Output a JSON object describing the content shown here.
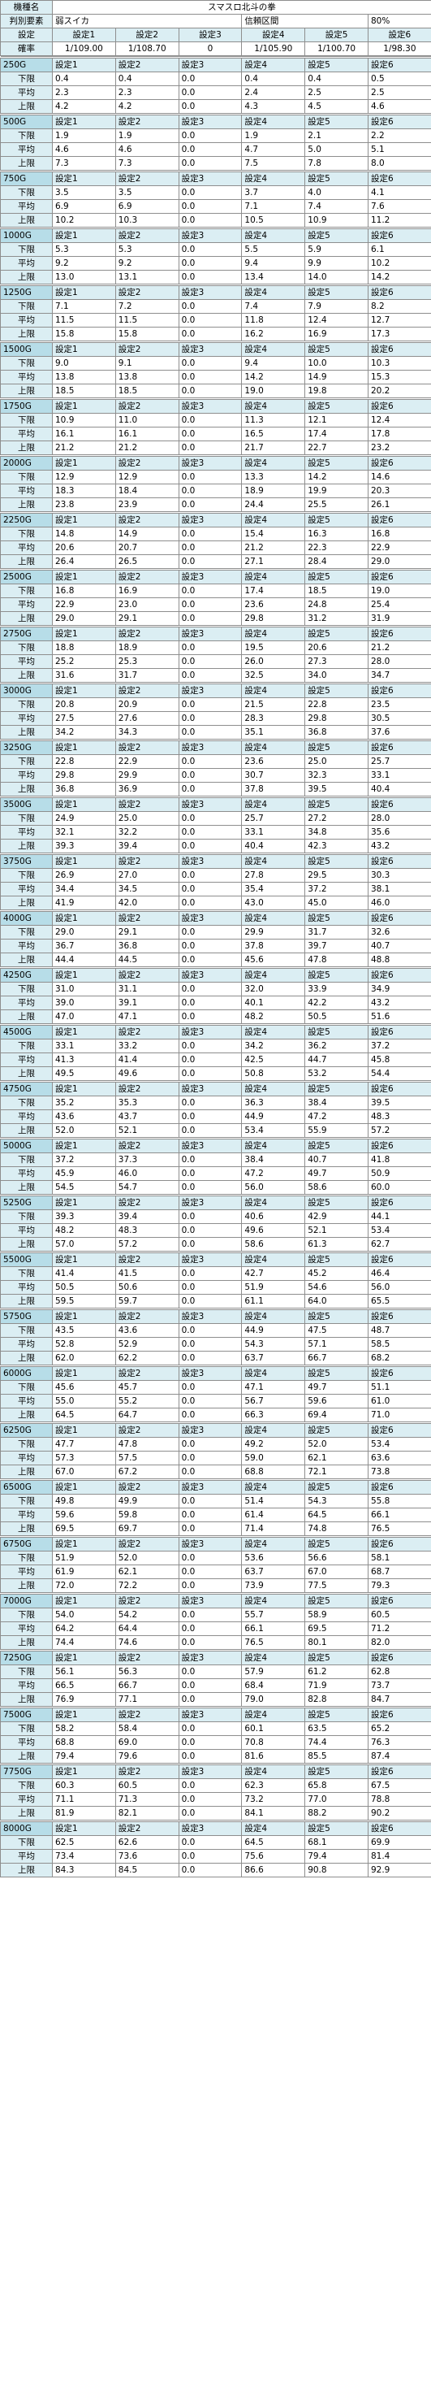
{
  "header": {
    "machine_label": "機種名",
    "machine_name": "スマスロ北斗の拳",
    "element_label": "判別要素",
    "element_value": "弱スイカ",
    "confidence_label": "信頼区間",
    "confidence_value": "80%",
    "setting_label": "設定",
    "prob_label": "確率",
    "settings": [
      "設定1",
      "設定2",
      "設定3",
      "設定4",
      "設定5",
      "設定6"
    ],
    "probs": [
      "1/109.00",
      "1/108.70",
      "0",
      "1/105.90",
      "1/100.70",
      "1/98.30"
    ]
  },
  "row_labels": [
    "下限",
    "平均",
    "上限"
  ],
  "blocks": [
    {
      "g": "250G",
      "rows": [
        [
          "0.4",
          "0.4",
          "0.0",
          "0.4",
          "0.4",
          "0.5"
        ],
        [
          "2.3",
          "2.3",
          "0.0",
          "2.4",
          "2.5",
          "2.5"
        ],
        [
          "4.2",
          "4.2",
          "0.0",
          "4.3",
          "4.5",
          "4.6"
        ]
      ]
    },
    {
      "g": "500G",
      "rows": [
        [
          "1.9",
          "1.9",
          "0.0",
          "1.9",
          "2.1",
          "2.2"
        ],
        [
          "4.6",
          "4.6",
          "0.0",
          "4.7",
          "5.0",
          "5.1"
        ],
        [
          "7.3",
          "7.3",
          "0.0",
          "7.5",
          "7.8",
          "8.0"
        ]
      ]
    },
    {
      "g": "750G",
      "rows": [
        [
          "3.5",
          "3.5",
          "0.0",
          "3.7",
          "4.0",
          "4.1"
        ],
        [
          "6.9",
          "6.9",
          "0.0",
          "7.1",
          "7.4",
          "7.6"
        ],
        [
          "10.2",
          "10.3",
          "0.0",
          "10.5",
          "10.9",
          "11.2"
        ]
      ]
    },
    {
      "g": "1000G",
      "rows": [
        [
          "5.3",
          "5.3",
          "0.0",
          "5.5",
          "5.9",
          "6.1"
        ],
        [
          "9.2",
          "9.2",
          "0.0",
          "9.4",
          "9.9",
          "10.2"
        ],
        [
          "13.0",
          "13.1",
          "0.0",
          "13.4",
          "14.0",
          "14.2"
        ]
      ]
    },
    {
      "g": "1250G",
      "rows": [
        [
          "7.1",
          "7.2",
          "0.0",
          "7.4",
          "7.9",
          "8.2"
        ],
        [
          "11.5",
          "11.5",
          "0.0",
          "11.8",
          "12.4",
          "12.7"
        ],
        [
          "15.8",
          "15.8",
          "0.0",
          "16.2",
          "16.9",
          "17.3"
        ]
      ]
    },
    {
      "g": "1500G",
      "rows": [
        [
          "9.0",
          "9.1",
          "0.0",
          "9.4",
          "10.0",
          "10.3"
        ],
        [
          "13.8",
          "13.8",
          "0.0",
          "14.2",
          "14.9",
          "15.3"
        ],
        [
          "18.5",
          "18.5",
          "0.0",
          "19.0",
          "19.8",
          "20.2"
        ]
      ]
    },
    {
      "g": "1750G",
      "rows": [
        [
          "10.9",
          "11.0",
          "0.0",
          "11.3",
          "12.1",
          "12.4"
        ],
        [
          "16.1",
          "16.1",
          "0.0",
          "16.5",
          "17.4",
          "17.8"
        ],
        [
          "21.2",
          "21.2",
          "0.0",
          "21.7",
          "22.7",
          "23.2"
        ]
      ]
    },
    {
      "g": "2000G",
      "rows": [
        [
          "12.9",
          "12.9",
          "0.0",
          "13.3",
          "14.2",
          "14.6"
        ],
        [
          "18.3",
          "18.4",
          "0.0",
          "18.9",
          "19.9",
          "20.3"
        ],
        [
          "23.8",
          "23.9",
          "0.0",
          "24.4",
          "25.5",
          "26.1"
        ]
      ]
    },
    {
      "g": "2250G",
      "rows": [
        [
          "14.8",
          "14.9",
          "0.0",
          "15.4",
          "16.3",
          "16.8"
        ],
        [
          "20.6",
          "20.7",
          "0.0",
          "21.2",
          "22.3",
          "22.9"
        ],
        [
          "26.4",
          "26.5",
          "0.0",
          "27.1",
          "28.4",
          "29.0"
        ]
      ]
    },
    {
      "g": "2500G",
      "rows": [
        [
          "16.8",
          "16.9",
          "0.0",
          "17.4",
          "18.5",
          "19.0"
        ],
        [
          "22.9",
          "23.0",
          "0.0",
          "23.6",
          "24.8",
          "25.4"
        ],
        [
          "29.0",
          "29.1",
          "0.0",
          "29.8",
          "31.2",
          "31.9"
        ]
      ]
    },
    {
      "g": "2750G",
      "rows": [
        [
          "18.8",
          "18.9",
          "0.0",
          "19.5",
          "20.6",
          "21.2"
        ],
        [
          "25.2",
          "25.3",
          "0.0",
          "26.0",
          "27.3",
          "28.0"
        ],
        [
          "31.6",
          "31.7",
          "0.0",
          "32.5",
          "34.0",
          "34.7"
        ]
      ]
    },
    {
      "g": "3000G",
      "rows": [
        [
          "20.8",
          "20.9",
          "0.0",
          "21.5",
          "22.8",
          "23.5"
        ],
        [
          "27.5",
          "27.6",
          "0.0",
          "28.3",
          "29.8",
          "30.5"
        ],
        [
          "34.2",
          "34.3",
          "0.0",
          "35.1",
          "36.8",
          "37.6"
        ]
      ]
    },
    {
      "g": "3250G",
      "rows": [
        [
          "22.8",
          "22.9",
          "0.0",
          "23.6",
          "25.0",
          "25.7"
        ],
        [
          "29.8",
          "29.9",
          "0.0",
          "30.7",
          "32.3",
          "33.1"
        ],
        [
          "36.8",
          "36.9",
          "0.0",
          "37.8",
          "39.5",
          "40.4"
        ]
      ]
    },
    {
      "g": "3500G",
      "rows": [
        [
          "24.9",
          "25.0",
          "0.0",
          "25.7",
          "27.2",
          "28.0"
        ],
        [
          "32.1",
          "32.2",
          "0.0",
          "33.1",
          "34.8",
          "35.6"
        ],
        [
          "39.3",
          "39.4",
          "0.0",
          "40.4",
          "42.3",
          "43.2"
        ]
      ]
    },
    {
      "g": "3750G",
      "rows": [
        [
          "26.9",
          "27.0",
          "0.0",
          "27.8",
          "29.5",
          "30.3"
        ],
        [
          "34.4",
          "34.5",
          "0.0",
          "35.4",
          "37.2",
          "38.1"
        ],
        [
          "41.9",
          "42.0",
          "0.0",
          "43.0",
          "45.0",
          "46.0"
        ]
      ]
    },
    {
      "g": "4000G",
      "rows": [
        [
          "29.0",
          "29.1",
          "0.0",
          "29.9",
          "31.7",
          "32.6"
        ],
        [
          "36.7",
          "36.8",
          "0.0",
          "37.8",
          "39.7",
          "40.7"
        ],
        [
          "44.4",
          "44.5",
          "0.0",
          "45.6",
          "47.8",
          "48.8"
        ]
      ]
    },
    {
      "g": "4250G",
      "rows": [
        [
          "31.0",
          "31.1",
          "0.0",
          "32.0",
          "33.9",
          "34.9"
        ],
        [
          "39.0",
          "39.1",
          "0.0",
          "40.1",
          "42.2",
          "43.2"
        ],
        [
          "47.0",
          "47.1",
          "0.0",
          "48.2",
          "50.5",
          "51.6"
        ]
      ]
    },
    {
      "g": "4500G",
      "rows": [
        [
          "33.1",
          "33.2",
          "0.0",
          "34.2",
          "36.2",
          "37.2"
        ],
        [
          "41.3",
          "41.4",
          "0.0",
          "42.5",
          "44.7",
          "45.8"
        ],
        [
          "49.5",
          "49.6",
          "0.0",
          "50.8",
          "53.2",
          "54.4"
        ]
      ]
    },
    {
      "g": "4750G",
      "rows": [
        [
          "35.2",
          "35.3",
          "0.0",
          "36.3",
          "38.4",
          "39.5"
        ],
        [
          "43.6",
          "43.7",
          "0.0",
          "44.9",
          "47.2",
          "48.3"
        ],
        [
          "52.0",
          "52.1",
          "0.0",
          "53.4",
          "55.9",
          "57.2"
        ]
      ]
    },
    {
      "g": "5000G",
      "rows": [
        [
          "37.2",
          "37.3",
          "0.0",
          "38.4",
          "40.7",
          "41.8"
        ],
        [
          "45.9",
          "46.0",
          "0.0",
          "47.2",
          "49.7",
          "50.9"
        ],
        [
          "54.5",
          "54.7",
          "0.0",
          "56.0",
          "58.6",
          "60.0"
        ]
      ]
    },
    {
      "g": "5250G",
      "rows": [
        [
          "39.3",
          "39.4",
          "0.0",
          "40.6",
          "42.9",
          "44.1"
        ],
        [
          "48.2",
          "48.3",
          "0.0",
          "49.6",
          "52.1",
          "53.4"
        ],
        [
          "57.0",
          "57.2",
          "0.0",
          "58.6",
          "61.3",
          "62.7"
        ]
      ]
    },
    {
      "g": "5500G",
      "rows": [
        [
          "41.4",
          "41.5",
          "0.0",
          "42.7",
          "45.2",
          "46.4"
        ],
        [
          "50.5",
          "50.6",
          "0.0",
          "51.9",
          "54.6",
          "56.0"
        ],
        [
          "59.5",
          "59.7",
          "0.0",
          "61.1",
          "64.0",
          "65.5"
        ]
      ]
    },
    {
      "g": "5750G",
      "rows": [
        [
          "43.5",
          "43.6",
          "0.0",
          "44.9",
          "47.5",
          "48.7"
        ],
        [
          "52.8",
          "52.9",
          "0.0",
          "54.3",
          "57.1",
          "58.5"
        ],
        [
          "62.0",
          "62.2",
          "0.0",
          "63.7",
          "66.7",
          "68.2"
        ]
      ]
    },
    {
      "g": "6000G",
      "rows": [
        [
          "45.6",
          "45.7",
          "0.0",
          "47.1",
          "49.7",
          "51.1"
        ],
        [
          "55.0",
          "55.2",
          "0.0",
          "56.7",
          "59.6",
          "61.0"
        ],
        [
          "64.5",
          "64.7",
          "0.0",
          "66.3",
          "69.4",
          "71.0"
        ]
      ]
    },
    {
      "g": "6250G",
      "rows": [
        [
          "47.7",
          "47.8",
          "0.0",
          "49.2",
          "52.0",
          "53.4"
        ],
        [
          "57.3",
          "57.5",
          "0.0",
          "59.0",
          "62.1",
          "63.6"
        ],
        [
          "67.0",
          "67.2",
          "0.0",
          "68.8",
          "72.1",
          "73.8"
        ]
      ]
    },
    {
      "g": "6500G",
      "rows": [
        [
          "49.8",
          "49.9",
          "0.0",
          "51.4",
          "54.3",
          "55.8"
        ],
        [
          "59.6",
          "59.8",
          "0.0",
          "61.4",
          "64.5",
          "66.1"
        ],
        [
          "69.5",
          "69.7",
          "0.0",
          "71.4",
          "74.8",
          "76.5"
        ]
      ]
    },
    {
      "g": "6750G",
      "rows": [
        [
          "51.9",
          "52.0",
          "0.0",
          "53.6",
          "56.6",
          "58.1"
        ],
        [
          "61.9",
          "62.1",
          "0.0",
          "63.7",
          "67.0",
          "68.7"
        ],
        [
          "72.0",
          "72.2",
          "0.0",
          "73.9",
          "77.5",
          "79.3"
        ]
      ]
    },
    {
      "g": "7000G",
      "rows": [
        [
          "54.0",
          "54.2",
          "0.0",
          "55.7",
          "58.9",
          "60.5"
        ],
        [
          "64.2",
          "64.4",
          "0.0",
          "66.1",
          "69.5",
          "71.2"
        ],
        [
          "74.4",
          "74.6",
          "0.0",
          "76.5",
          "80.1",
          "82.0"
        ]
      ]
    },
    {
      "g": "7250G",
      "rows": [
        [
          "56.1",
          "56.3",
          "0.0",
          "57.9",
          "61.2",
          "62.8"
        ],
        [
          "66.5",
          "66.7",
          "0.0",
          "68.4",
          "71.9",
          "73.7"
        ],
        [
          "76.9",
          "77.1",
          "0.0",
          "79.0",
          "82.8",
          "84.7"
        ]
      ]
    },
    {
      "g": "7500G",
      "rows": [
        [
          "58.2",
          "58.4",
          "0.0",
          "60.1",
          "63.5",
          "65.2"
        ],
        [
          "68.8",
          "69.0",
          "0.0",
          "70.8",
          "74.4",
          "76.3"
        ],
        [
          "79.4",
          "79.6",
          "0.0",
          "81.6",
          "85.5",
          "87.4"
        ]
      ]
    },
    {
      "g": "7750G",
      "rows": [
        [
          "60.3",
          "60.5",
          "0.0",
          "62.3",
          "65.8",
          "67.5"
        ],
        [
          "71.1",
          "71.3",
          "0.0",
          "73.2",
          "77.0",
          "78.8"
        ],
        [
          "81.9",
          "82.1",
          "0.0",
          "84.1",
          "88.2",
          "90.2"
        ]
      ]
    },
    {
      "g": "8000G",
      "rows": [
        [
          "62.5",
          "62.6",
          "0.0",
          "64.5",
          "68.1",
          "69.9"
        ],
        [
          "73.4",
          "73.6",
          "0.0",
          "75.6",
          "79.4",
          "81.4"
        ],
        [
          "84.3",
          "84.5",
          "0.0",
          "86.6",
          "90.8",
          "92.9"
        ]
      ]
    }
  ]
}
